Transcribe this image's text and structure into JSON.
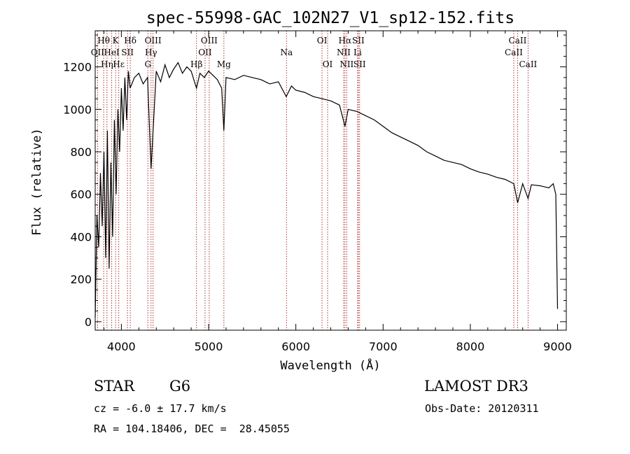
{
  "chart_data": {
    "type": "line",
    "title": "spec-55998-GAC_102N27_V1_sp12-152.fits",
    "xlabel": "Wavelength (Å)",
    "ylabel": "Flux (relative)",
    "xlim": [
      3700,
      9100
    ],
    "ylim": [
      -40,
      1370
    ],
    "xticks": [
      4000,
      5000,
      6000,
      7000,
      8000,
      9000
    ],
    "yticks": [
      0,
      200,
      400,
      600,
      800,
      1000,
      1200
    ],
    "grid": false,
    "series": [
      {
        "name": "spectrum",
        "x": [
          3700,
          3720,
          3740,
          3760,
          3780,
          3800,
          3820,
          3840,
          3860,
          3880,
          3900,
          3920,
          3940,
          3960,
          3980,
          4000,
          4020,
          4040,
          4060,
          4080,
          4100,
          4150,
          4200,
          4250,
          4300,
          4340,
          4400,
          4450,
          4500,
          4550,
          4600,
          4650,
          4700,
          4750,
          4800,
          4861,
          4900,
          4950,
          5000,
          5050,
          5100,
          5150,
          5175,
          5200,
          5300,
          5400,
          5500,
          5600,
          5700,
          5800,
          5890,
          5950,
          6000,
          6100,
          6200,
          6300,
          6400,
          6500,
          6563,
          6600,
          6700,
          6800,
          6900,
          7000,
          7100,
          7200,
          7300,
          7400,
          7500,
          7600,
          7700,
          7800,
          7900,
          8000,
          8100,
          8200,
          8300,
          8400,
          8498,
          8542,
          8600,
          8662,
          8700,
          8800,
          8900,
          8950,
          8980,
          9000
        ],
        "y": [
          20,
          500,
          350,
          700,
          450,
          800,
          300,
          900,
          250,
          750,
          400,
          950,
          600,
          1000,
          800,
          1100,
          900,
          1150,
          950,
          1180,
          1100,
          1150,
          1170,
          1120,
          1150,
          720,
          1180,
          1130,
          1210,
          1150,
          1190,
          1220,
          1170,
          1200,
          1180,
          1100,
          1170,
          1150,
          1180,
          1160,
          1140,
          1100,
          900,
          1150,
          1140,
          1160,
          1150,
          1140,
          1120,
          1130,
          1060,
          1110,
          1090,
          1080,
          1060,
          1050,
          1040,
          1020,
          920,
          1000,
          990,
          970,
          950,
          920,
          890,
          870,
          850,
          830,
          800,
          780,
          760,
          750,
          740,
          720,
          705,
          695,
          680,
          670,
          650,
          560,
          650,
          580,
          645,
          640,
          630,
          650,
          600,
          60
        ]
      }
    ],
    "line_markers": [
      {
        "label": "Hθ",
        "wavelength": 3797,
        "row": 1
      },
      {
        "label": "OII",
        "wavelength": 3727,
        "row": 2
      },
      {
        "label": "Hη",
        "wavelength": 3835,
        "row": 3
      },
      {
        "label": "K",
        "wavelength": 3934,
        "row": 1
      },
      {
        "label": "HeI",
        "wavelength": 3889,
        "row": 2
      },
      {
        "label": "Hε",
        "wavelength": 3970,
        "row": 3
      },
      {
        "label": "Hδ",
        "wavelength": 4102,
        "row": 1
      },
      {
        "label": "SII",
        "wavelength": 4070,
        "row": 2
      },
      {
        "label": "OIII",
        "wavelength": 4363,
        "row": 1
      },
      {
        "label": "Hγ",
        "wavelength": 4340,
        "row": 2
      },
      {
        "label": "G",
        "wavelength": 4304,
        "row": 3
      },
      {
        "label": "OIII",
        "wavelength": 5007,
        "row": 1
      },
      {
        "label": "OII",
        "wavelength": 4959,
        "row": 2
      },
      {
        "label": "Hβ",
        "wavelength": 4861,
        "row": 3
      },
      {
        "label": "Mg",
        "wavelength": 5175,
        "row": 3
      },
      {
        "label": "Na",
        "wavelength": 5893,
        "row": 2
      },
      {
        "label": "OI",
        "wavelength": 6300,
        "row": 1
      },
      {
        "label": "OI",
        "wavelength": 6364,
        "row": 3
      },
      {
        "label": "Hα",
        "wavelength": 6563,
        "row": 1
      },
      {
        "label": "SII",
        "wavelength": 6716,
        "row": 1
      },
      {
        "label": "NII",
        "wavelength": 6548,
        "row": 2
      },
      {
        "label": "Li",
        "wavelength": 6708,
        "row": 2
      },
      {
        "label": "NII",
        "wavelength": 6583,
        "row": 3
      },
      {
        "label": "SII",
        "wavelength": 6731,
        "row": 3
      },
      {
        "label": "CaII",
        "wavelength": 8542,
        "row": 1
      },
      {
        "label": "CaII",
        "wavelength": 8498,
        "row": 2
      },
      {
        "label": "CaII",
        "wavelength": 8662,
        "row": 3
      }
    ]
  },
  "info": {
    "object_class": "STAR",
    "subclass": "G6",
    "survey": "LAMOST DR3",
    "cz": "cz = -6.0 ± 17.7 km/s",
    "obs_date": "Obs-Date: 20120311",
    "coords": "RA = 104.18406, DEC =  28.45055"
  },
  "colors": {
    "spectrum": "#000000",
    "line_markers": "#b03030",
    "axes": "#000000"
  }
}
